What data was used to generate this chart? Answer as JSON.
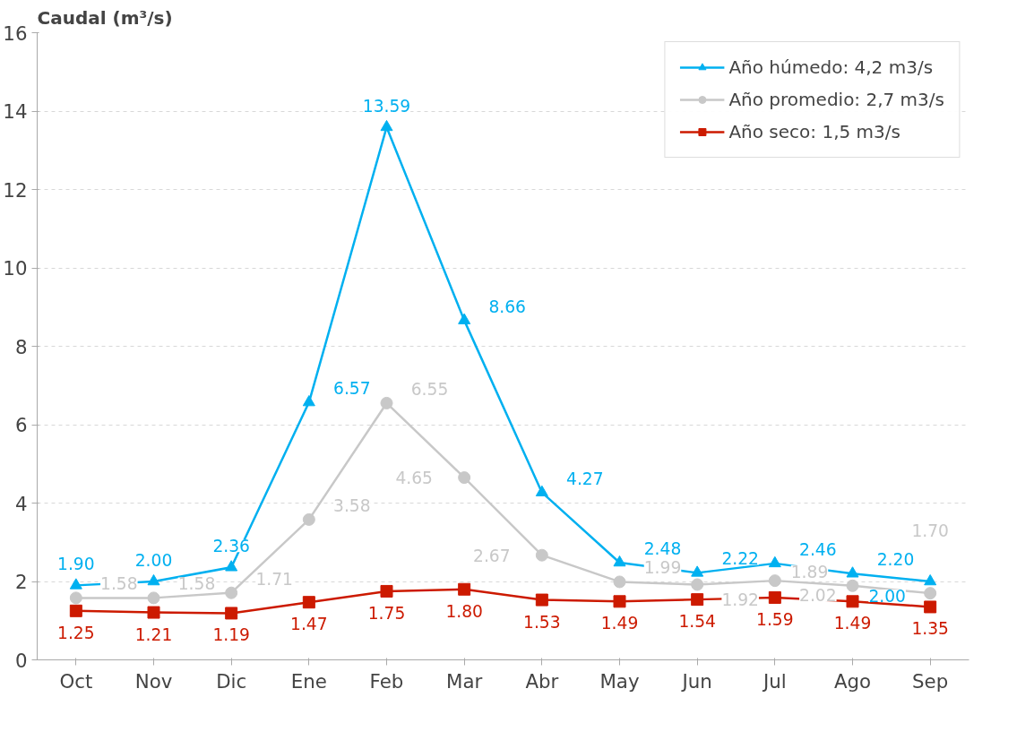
{
  "chart_data": {
    "type": "line",
    "ylabel": "Caudal (m³/s)",
    "categories": [
      "Oct",
      "Nov",
      "Dic",
      "Ene",
      "Feb",
      "Mar",
      "Abr",
      "May",
      "Jun",
      "Jul",
      "Ago",
      "Sep"
    ],
    "series": [
      {
        "name": "Año húmedo: 4,2 m3/s",
        "color": "#00b0f0",
        "marker": "triangle",
        "values": [
          1.9,
          2.0,
          2.36,
          6.57,
          13.59,
          8.66,
          4.27,
          2.48,
          2.22,
          2.46,
          2.2,
          2.0
        ],
        "value_labels": [
          "1.90",
          "2.00",
          "2.36",
          "6.57",
          "13.59",
          "8.66",
          "4.27",
          "2.48",
          "2.22",
          "2.46",
          "2.20",
          "2.00"
        ]
      },
      {
        "name": "Año promedio: 2,7 m3/s",
        "color": "#c8c8c8",
        "marker": "circle",
        "values": [
          1.58,
          1.58,
          1.71,
          3.58,
          6.55,
          4.65,
          2.67,
          1.99,
          1.92,
          2.02,
          1.89,
          1.7
        ],
        "value_labels": [
          "1.58",
          "1.58",
          "1.71",
          "3.58",
          "6.55",
          "4.65",
          "2.67",
          "1.99",
          "1.92",
          "2.02",
          "1.89",
          "1.70"
        ]
      },
      {
        "name": "Año seco: 1,5 m3/s",
        "color": "#cc1a00",
        "marker": "square",
        "values": [
          1.25,
          1.21,
          1.19,
          1.47,
          1.75,
          1.8,
          1.53,
          1.49,
          1.54,
          1.59,
          1.49,
          1.35
        ],
        "value_labels": [
          "1.25",
          "1.21",
          "1.19",
          "1.47",
          "1.75",
          "1.80",
          "1.53",
          "1.49",
          "1.54",
          "1.59",
          "1.49",
          "1.35"
        ]
      }
    ],
    "ylim": [
      0,
      16
    ],
    "yticks": [
      0,
      2,
      4,
      6,
      8,
      10,
      12,
      14,
      16
    ],
    "grid": "y",
    "legend": "top right",
    "line_style": "solid"
  }
}
